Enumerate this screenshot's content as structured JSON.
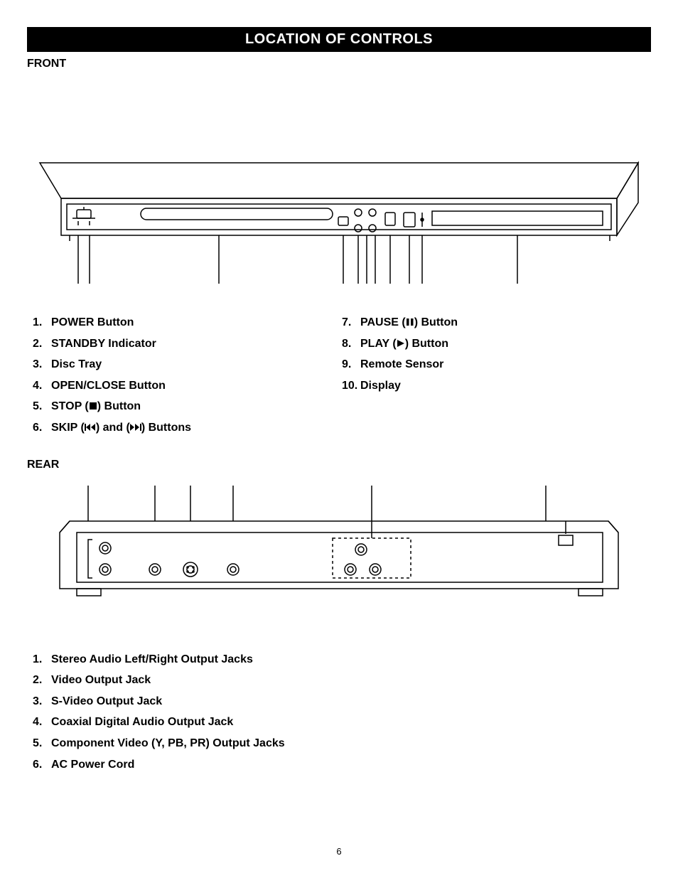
{
  "header": {
    "title": "LOCATION OF CONTROLS"
  },
  "front": {
    "label": "FRONT",
    "left_items": [
      {
        "n": "1.",
        "text": "POWER Button"
      },
      {
        "n": "2.",
        "text": "STANDBY Indicator"
      },
      {
        "n": "3.",
        "text": "Disc Tray"
      },
      {
        "n": "4.",
        "text": "OPEN/CLOSE Button"
      },
      {
        "n": "5.",
        "pre": "STOP (",
        "icon": "stop",
        "post": ") Button"
      },
      {
        "n": "6.",
        "pre": "SKIP  (",
        "icon": "prev",
        "mid": ") and (",
        "icon2": "next",
        "post": ") Buttons"
      }
    ],
    "right_items": [
      {
        "n": "7.",
        "pre": "PAUSE (",
        "icon": "pause",
        "post": ") Button"
      },
      {
        "n": "8.",
        "pre": "PLAY (",
        "icon": "play",
        "post": ") Button"
      },
      {
        "n": "9.",
        "text": "Remote Sensor"
      },
      {
        "n": "10.",
        "text": "Display"
      }
    ]
  },
  "rear": {
    "label": "REAR",
    "items": [
      {
        "n": "1.",
        "text": "Stereo Audio Left/Right Output Jacks"
      },
      {
        "n": "2.",
        "text": "Video Output Jack"
      },
      {
        "n": "3.",
        "text": "S-Video Output Jack"
      },
      {
        "n": "4.",
        "text": "Coaxial Digital Audio Output Jack"
      },
      {
        "n": "5.",
        "text": "Component Video (Y, PB, PR) Output Jacks"
      },
      {
        "n": "6.",
        "text": "AC Power Cord"
      }
    ]
  },
  "page_number": "6",
  "style": {
    "stroke": "#000000",
    "bg": "#ffffff",
    "text": "#000000"
  }
}
